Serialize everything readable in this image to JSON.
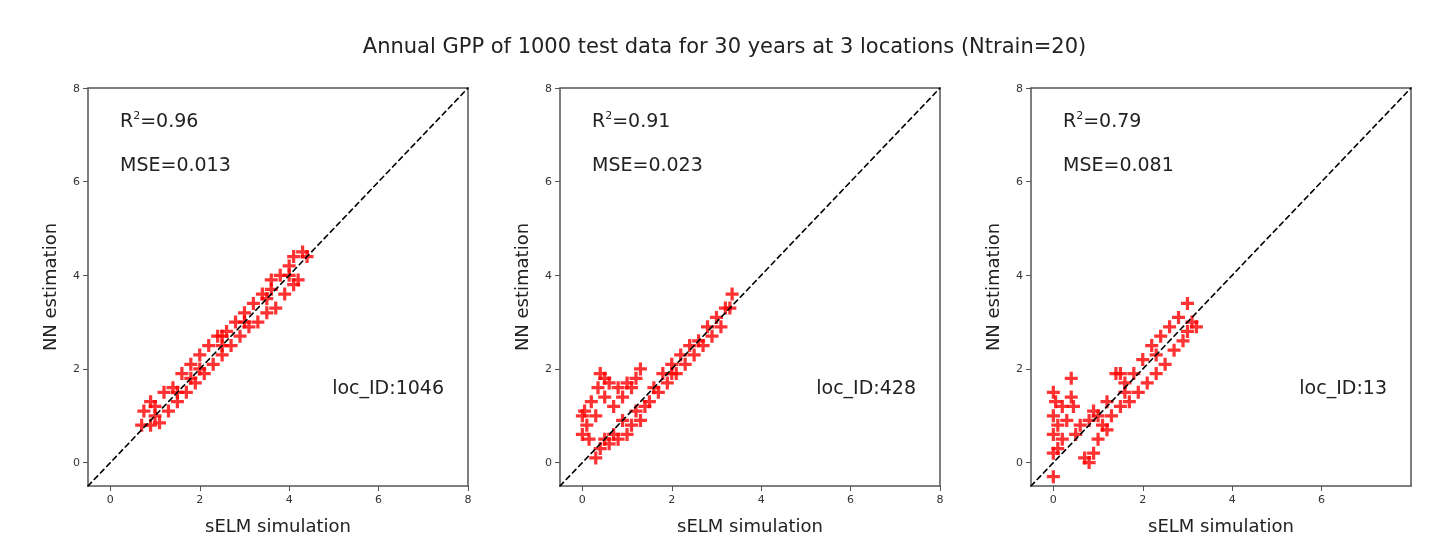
{
  "chart_data": [
    {
      "type": "scatter",
      "title": "Annual GPP of 1000 test data for 30 years at 3 locations (Ntrain=20)",
      "xlabel": "sELM simulation",
      "ylabel": "NN estimation",
      "xlim": [
        -0.5,
        8
      ],
      "ylim": [
        -0.5,
        8
      ],
      "xticks": [
        0,
        2,
        4,
        6,
        8
      ],
      "yticks": [
        0,
        2,
        4,
        6,
        8
      ],
      "grid": false,
      "marker": "cross",
      "annotations": [
        "R$^{2}$=0.96",
        "MSE=0.013",
        "loc_ID:1046"
      ],
      "series": [
        {
          "type": "scatter",
          "color": "#ff0000",
          "x": [
            0.7,
            0.75,
            0.9,
            0.9,
            1.0,
            1.1,
            1.2,
            1.3,
            1.4,
            1.5,
            1.6,
            1.7,
            1.8,
            1.9,
            2.0,
            2.1,
            2.2,
            2.3,
            2.4,
            2.5,
            2.6,
            2.7,
            2.8,
            2.9,
            3.0,
            3.1,
            3.2,
            3.3,
            3.4,
            3.5,
            3.6,
            3.7,
            3.8,
            3.9,
            4.0,
            4.1,
            4.1,
            4.2,
            4.3,
            4.4,
            3.6,
            2.5,
            1.5,
            2.0,
            3.0,
            4.0,
            1.0,
            3.5,
            2.5,
            1.8
          ],
          "values": [
            0.8,
            1.1,
            0.8,
            1.3,
            1.0,
            0.85,
            1.5,
            1.1,
            1.6,
            1.3,
            1.9,
            1.5,
            2.1,
            1.7,
            2.3,
            1.9,
            2.5,
            2.1,
            2.7,
            2.3,
            2.8,
            2.5,
            3.0,
            2.7,
            3.2,
            2.9,
            3.4,
            3.0,
            3.6,
            3.2,
            3.9,
            3.3,
            4.0,
            3.6,
            4.2,
            3.8,
            4.4,
            3.9,
            4.5,
            4.4,
            3.7,
            2.5,
            1.5,
            2.0,
            3.0,
            4.0,
            1.2,
            3.5,
            2.7,
            1.8
          ]
        },
        {
          "type": "line",
          "color": "#000000",
          "line_style": "dashed",
          "marker": "none",
          "x": [
            -0.5,
            8
          ],
          "values": [
            -0.5,
            8
          ]
        }
      ]
    },
    {
      "type": "scatter",
      "xlabel": "sELM simulation",
      "ylabel": "NN estimation",
      "xlim": [
        -0.5,
        8
      ],
      "ylim": [
        -0.5,
        8
      ],
      "xticks": [
        0,
        2,
        4,
        6,
        8
      ],
      "yticks": [
        0,
        2,
        4,
        6,
        8
      ],
      "grid": false,
      "marker": "cross",
      "annotations": [
        "R$^{2}$=0.91",
        "MSE=0.023",
        "loc_ID:428"
      ],
      "series": [
        {
          "type": "scatter",
          "color": "#ff0000",
          "x": [
            0.0,
            0.0,
            0.05,
            0.1,
            0.15,
            0.2,
            0.3,
            0.35,
            0.4,
            0.5,
            0.5,
            0.6,
            0.7,
            0.8,
            0.9,
            1.0,
            1.1,
            1.2,
            1.3,
            0.3,
            0.4,
            0.5,
            0.6,
            0.7,
            0.8,
            1.0,
            1.1,
            1.3,
            1.4,
            1.5,
            1.6,
            1.7,
            1.8,
            1.9,
            2.0,
            2.1,
            2.2,
            2.3,
            2.4,
            2.5,
            2.6,
            2.7,
            2.8,
            2.9,
            3.0,
            3.1,
            3.2,
            3.3,
            3.35,
            1.2,
            0.9,
            2.0
          ],
          "values": [
            0.6,
            1.0,
            1.1,
            0.8,
            0.5,
            1.3,
            1.0,
            1.6,
            1.9,
            1.8,
            1.4,
            1.7,
            1.2,
            1.6,
            1.4,
            1.7,
            1.6,
            1.8,
            2.0,
            0.1,
            0.3,
            0.5,
            0.4,
            0.6,
            0.5,
            0.6,
            0.8,
            0.9,
            1.2,
            1.3,
            1.6,
            1.5,
            1.9,
            1.7,
            2.1,
            1.9,
            2.3,
            2.1,
            2.5,
            2.3,
            2.6,
            2.5,
            2.9,
            2.7,
            3.1,
            2.9,
            3.3,
            3.3,
            3.6,
            1.1,
            0.9,
            1.9
          ]
        },
        {
          "type": "line",
          "color": "#000000",
          "line_style": "dashed",
          "marker": "none",
          "x": [
            -0.5,
            8
          ],
          "values": [
            -0.5,
            8
          ]
        }
      ]
    },
    {
      "type": "scatter",
      "xlabel": "sELM simulation",
      "ylabel": "NN estimation",
      "xlim": [
        -0.5,
        8
      ],
      "ylim": [
        -0.5,
        8
      ],
      "xticks": [
        0,
        2,
        4,
        6
      ],
      "yticks": [
        0,
        2,
        4,
        6,
        8
      ],
      "grid": false,
      "marker": "cross",
      "annotations": [
        "R$^{2}$=0.79",
        "MSE=0.081",
        "loc_ID:13"
      ],
      "series": [
        {
          "type": "scatter",
          "color": "#ff0000",
          "x": [
            0.0,
            0.0,
            0.0,
            0.0,
            0.0,
            0.05,
            0.1,
            0.1,
            0.2,
            0.2,
            0.3,
            0.4,
            0.4,
            0.45,
            0.5,
            0.6,
            0.7,
            0.8,
            0.8,
            0.9,
            0.9,
            1.0,
            1.0,
            1.1,
            1.2,
            1.2,
            1.3,
            1.4,
            1.5,
            1.5,
            1.6,
            1.7,
            1.8,
            1.9,
            2.0,
            2.1,
            2.2,
            2.3,
            2.4,
            2.5,
            2.6,
            2.7,
            2.8,
            2.9,
            3.0,
            3.1,
            3.2,
            3.0,
            2.3,
            1.6
          ],
          "values": [
            -0.3,
            0.2,
            0.6,
            1.0,
            1.5,
            1.3,
            0.8,
            0.3,
            1.2,
            0.5,
            0.9,
            1.4,
            1.8,
            1.2,
            0.6,
            0.8,
            0.1,
            0.0,
            0.9,
            0.2,
            1.1,
            0.5,
            1.0,
            0.8,
            1.3,
            0.7,
            1.0,
            1.9,
            1.2,
            1.9,
            1.5,
            1.3,
            1.9,
            1.5,
            2.2,
            1.7,
            2.5,
            1.9,
            2.7,
            2.1,
            2.9,
            2.4,
            3.1,
            2.6,
            3.4,
            3.0,
            2.9,
            2.8,
            2.3,
            1.7
          ]
        },
        {
          "type": "line",
          "color": "#000000",
          "line_style": "dashed",
          "marker": "none",
          "x": [
            -0.5,
            8
          ],
          "values": [
            -0.5,
            8
          ]
        }
      ]
    }
  ]
}
